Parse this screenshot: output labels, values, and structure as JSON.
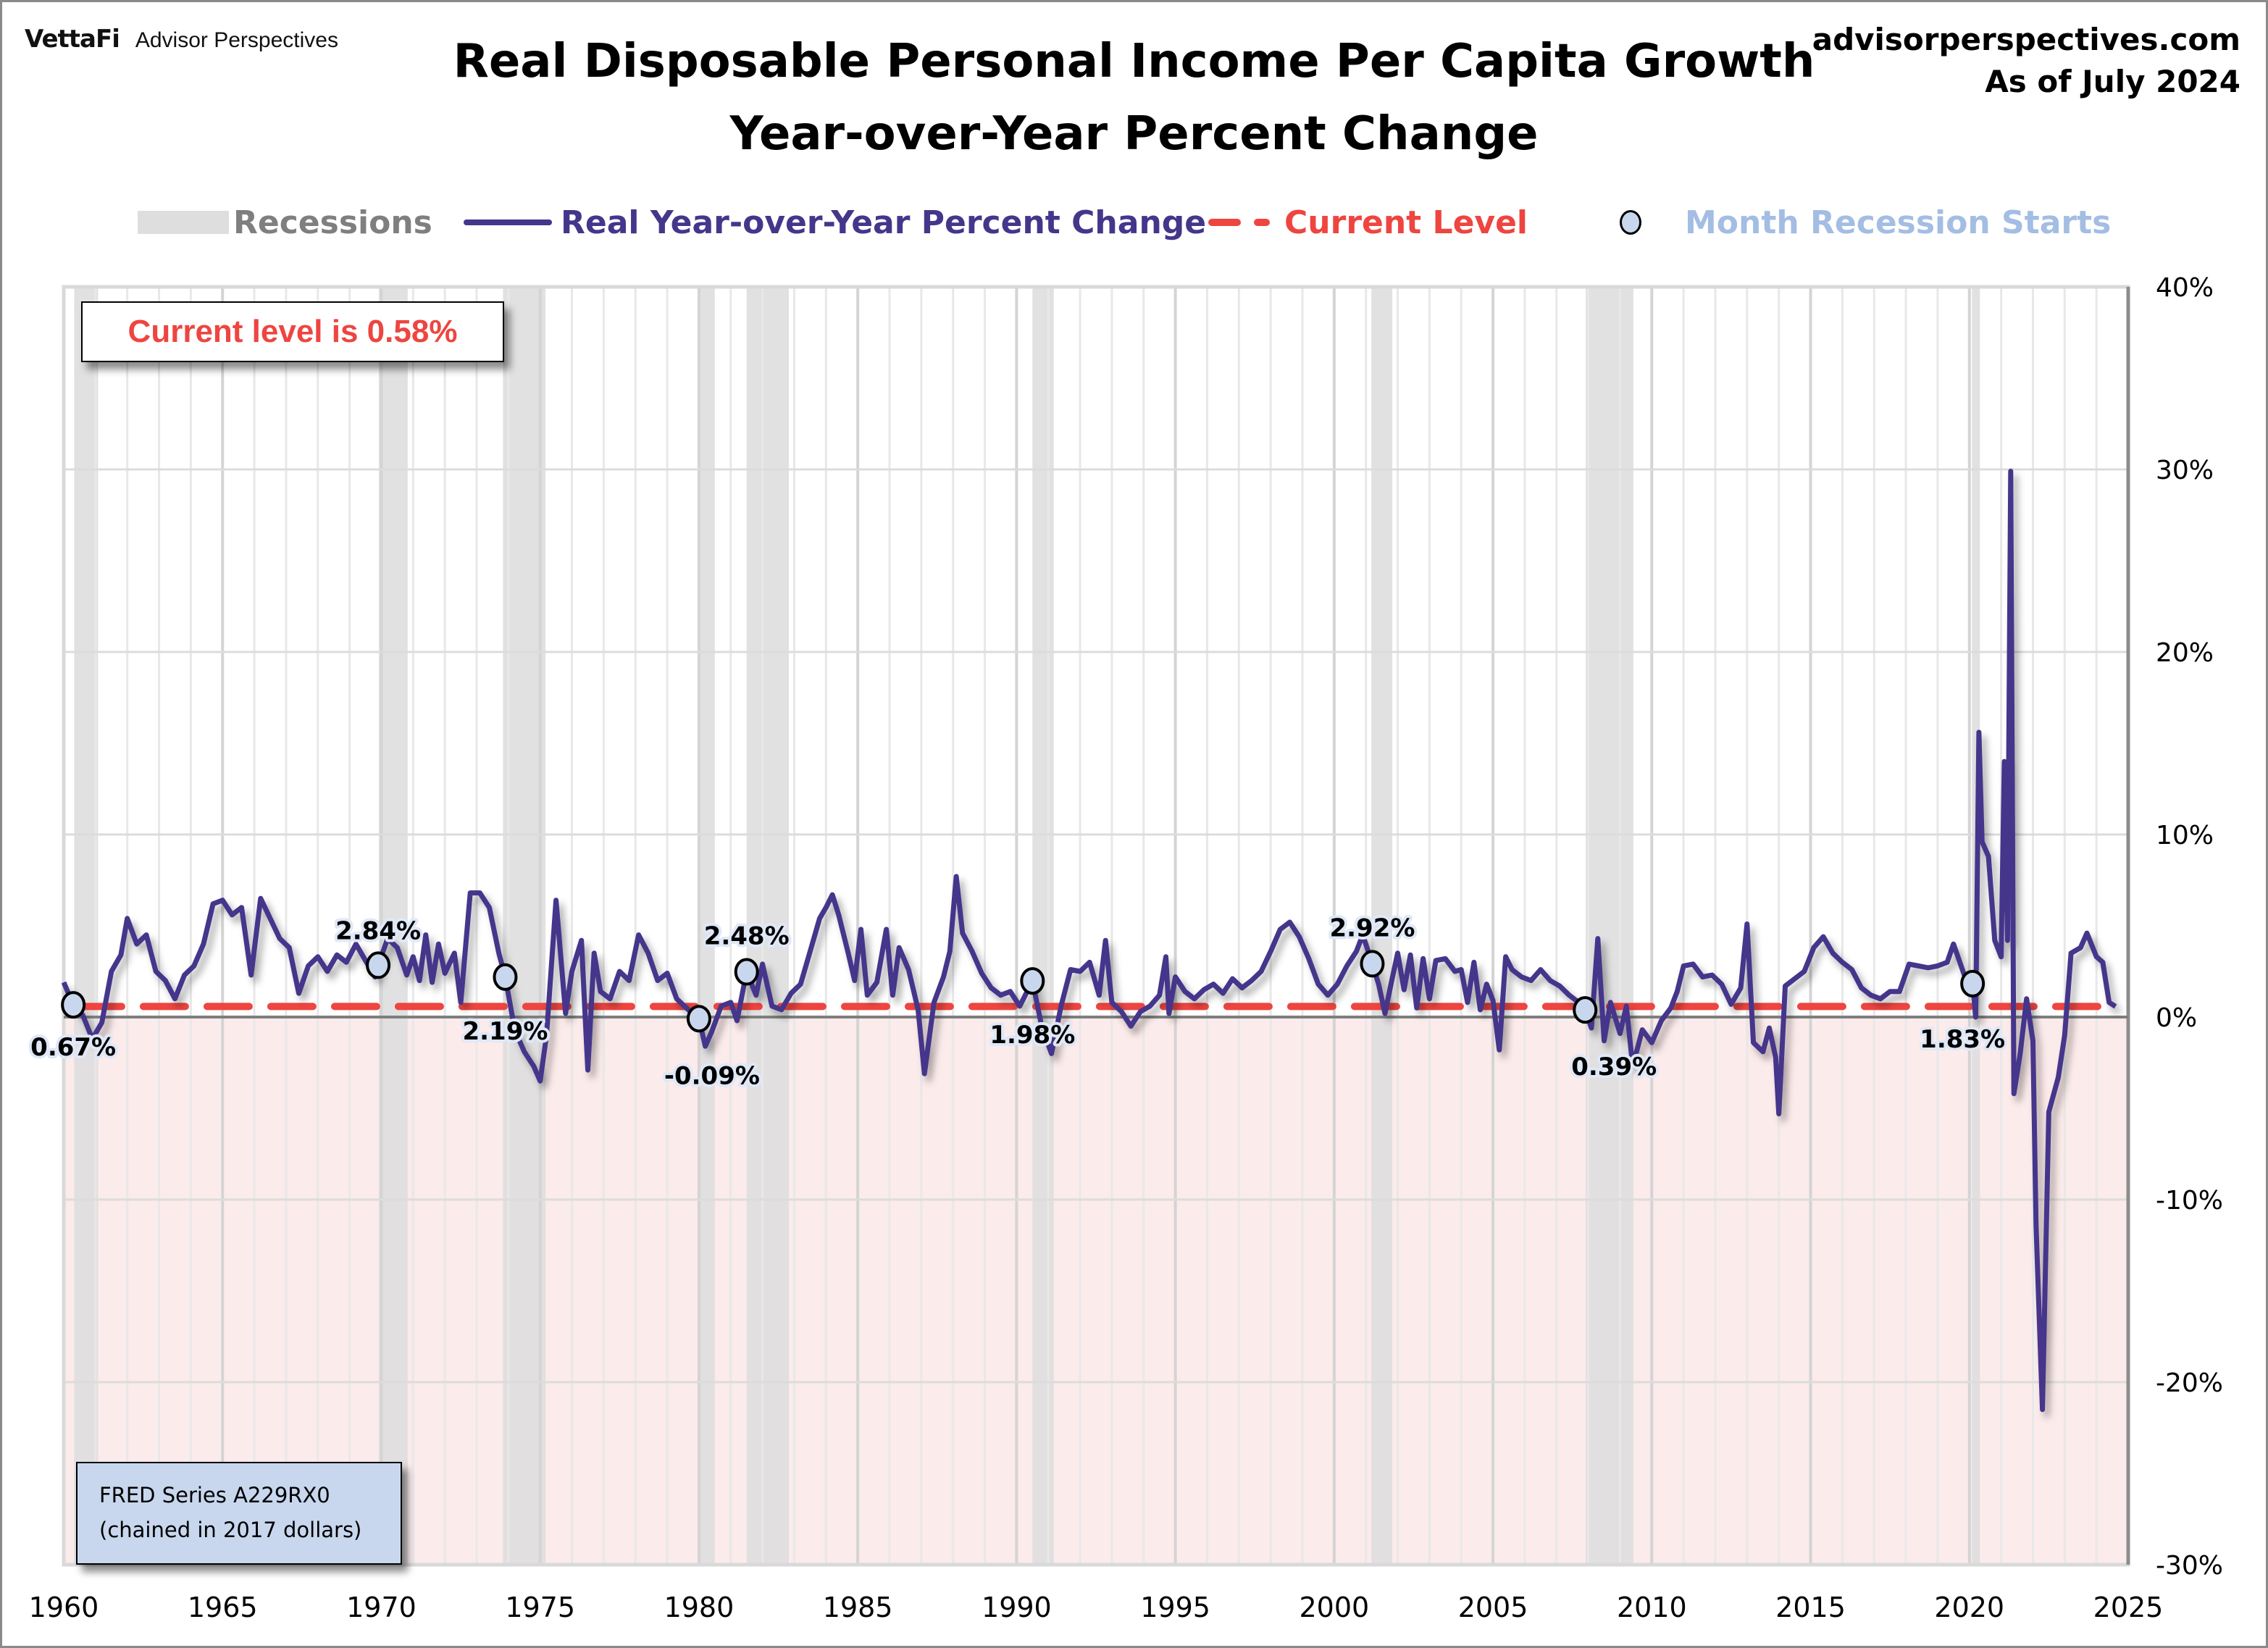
{
  "header": {
    "brand_logo": "VettaFi",
    "brand_name": "Advisor Perspectives",
    "site": "advisorperspectives.com",
    "as_of": "As of July 2024"
  },
  "callout": {
    "text": "Current level is 0.58%"
  },
  "source_note": {
    "line1": "FRED Series A229RX0",
    "line2": "(chained in 2017 dollars)"
  },
  "colors": {
    "series": "#44368b",
    "current_level": "#ee4540",
    "recession": "#dedede",
    "negative_zone": "#fcebeb",
    "marker_fill": "#c8d7ee",
    "legend_marker_text": "#a3bde3",
    "legend_recession_text": "#7f7f7f"
  },
  "chart_data": {
    "type": "line",
    "title": "Real Disposable Personal Income Per Capita Growth",
    "subtitle": "Year-over-Year Percent Change",
    "xlabel": "",
    "ylabel": "",
    "xlim": [
      1960,
      2025
    ],
    "ylim": [
      -30,
      40
    ],
    "grid": true,
    "legend_position": "top",
    "legend": [
      {
        "key": "recessions",
        "label": "Recessions"
      },
      {
        "key": "series",
        "label": "Real Year-over-Year Percent Change"
      },
      {
        "key": "current",
        "label": "Current Level"
      },
      {
        "key": "markers",
        "label": "Month Recession Starts"
      }
    ],
    "x_ticks": [
      1960,
      1965,
      1970,
      1975,
      1980,
      1985,
      1990,
      1995,
      2000,
      2005,
      2010,
      2015,
      2020,
      2025
    ],
    "x_tick_labels": [
      "1960",
      "1965",
      "1970",
      "1975",
      "1980",
      "1985",
      "1990",
      "1995",
      "2000",
      "2005",
      "2010",
      "2015",
      "2020",
      "2025"
    ],
    "y_ticks": [
      40,
      30,
      20,
      10,
      0,
      -10,
      -20,
      -30
    ],
    "y_tick_labels": [
      "40%",
      "30%",
      "20%",
      "10%",
      "0%",
      "-10%",
      "-20%",
      "-30%"
    ],
    "current_level": 0.58,
    "recessions": [
      [
        1960.33,
        1961.08
      ],
      [
        1969.92,
        1970.83
      ],
      [
        1973.83,
        1975.17
      ],
      [
        1980.0,
        1980.5
      ],
      [
        1981.5,
        1982.83
      ],
      [
        1990.5,
        1991.17
      ],
      [
        2001.17,
        2001.83
      ],
      [
        2007.92,
        2009.42
      ],
      [
        2020.08,
        2020.33
      ]
    ],
    "recession_start_markers": [
      {
        "x": 1960.3,
        "value": 0.67,
        "label": "0.67%"
      },
      {
        "x": 1969.9,
        "value": 2.84,
        "label": "2.84%"
      },
      {
        "x": 1973.9,
        "value": 2.19,
        "label": "2.19%"
      },
      {
        "x": 1980.0,
        "value": -0.09,
        "label": "-0.09%"
      },
      {
        "x": 1981.5,
        "value": 2.48,
        "label": "2.48%"
      },
      {
        "x": 1990.5,
        "value": 1.98,
        "label": "1.98%"
      },
      {
        "x": 2001.2,
        "value": 2.92,
        "label": "2.92%"
      },
      {
        "x": 2007.9,
        "value": 0.39,
        "label": "0.39%"
      },
      {
        "x": 2020.1,
        "value": 1.83,
        "label": "1.83%"
      }
    ],
    "series": [
      {
        "name": "Real Year-over-Year Percent Change",
        "points": [
          [
            1960.0,
            1.9
          ],
          [
            1960.3,
            0.67
          ],
          [
            1960.6,
            0.1
          ],
          [
            1960.9,
            -1.2
          ],
          [
            1961.2,
            -0.3
          ],
          [
            1961.5,
            2.5
          ],
          [
            1961.8,
            3.4
          ],
          [
            1962.0,
            5.4
          ],
          [
            1962.3,
            4.0
          ],
          [
            1962.6,
            4.5
          ],
          [
            1962.9,
            2.5
          ],
          [
            1963.2,
            2.0
          ],
          [
            1963.5,
            1.0
          ],
          [
            1963.8,
            2.3
          ],
          [
            1964.1,
            2.8
          ],
          [
            1964.4,
            4.0
          ],
          [
            1964.7,
            6.2
          ],
          [
            1965.0,
            6.4
          ],
          [
            1965.3,
            5.6
          ],
          [
            1965.6,
            6.0
          ],
          [
            1965.9,
            2.3
          ],
          [
            1966.2,
            6.5
          ],
          [
            1966.5,
            5.4
          ],
          [
            1966.8,
            4.3
          ],
          [
            1967.1,
            3.8
          ],
          [
            1967.4,
            1.3
          ],
          [
            1967.7,
            2.8
          ],
          [
            1968.0,
            3.3
          ],
          [
            1968.3,
            2.5
          ],
          [
            1968.6,
            3.4
          ],
          [
            1968.9,
            3.0
          ],
          [
            1969.2,
            4.0
          ],
          [
            1969.5,
            3.1
          ],
          [
            1969.8,
            2.2
          ],
          [
            1969.9,
            2.84
          ],
          [
            1970.2,
            4.3
          ],
          [
            1970.5,
            3.8
          ],
          [
            1970.8,
            2.3
          ],
          [
            1971.0,
            3.3
          ],
          [
            1971.2,
            2.0
          ],
          [
            1971.4,
            4.5
          ],
          [
            1971.6,
            1.9
          ],
          [
            1971.8,
            4.0
          ],
          [
            1972.0,
            2.4
          ],
          [
            1972.3,
            3.5
          ],
          [
            1972.5,
            0.8
          ],
          [
            1972.8,
            6.8
          ],
          [
            1973.1,
            6.8
          ],
          [
            1973.4,
            6.0
          ],
          [
            1973.7,
            3.5
          ],
          [
            1973.9,
            2.19
          ],
          [
            1974.2,
            -0.7
          ],
          [
            1974.5,
            -1.9
          ],
          [
            1974.8,
            -2.7
          ],
          [
            1975.0,
            -3.5
          ],
          [
            1975.2,
            -1.0
          ],
          [
            1975.5,
            6.4
          ],
          [
            1975.8,
            0.2
          ],
          [
            1976.0,
            2.5
          ],
          [
            1976.3,
            4.2
          ],
          [
            1976.5,
            -2.9
          ],
          [
            1976.7,
            3.5
          ],
          [
            1976.9,
            1.4
          ],
          [
            1977.2,
            1.0
          ],
          [
            1977.5,
            2.5
          ],
          [
            1977.8,
            2.0
          ],
          [
            1978.1,
            4.5
          ],
          [
            1978.4,
            3.5
          ],
          [
            1978.7,
            2.0
          ],
          [
            1979.0,
            2.4
          ],
          [
            1979.3,
            1.0
          ],
          [
            1979.6,
            0.5
          ],
          [
            1979.8,
            0.2
          ],
          [
            1980.0,
            -0.09
          ],
          [
            1980.2,
            -1.6
          ],
          [
            1980.4,
            -0.8
          ],
          [
            1980.7,
            0.6
          ],
          [
            1981.0,
            0.8
          ],
          [
            1981.2,
            -0.2
          ],
          [
            1981.5,
            2.48
          ],
          [
            1981.8,
            1.2
          ],
          [
            1982.0,
            2.9
          ],
          [
            1982.3,
            0.6
          ],
          [
            1982.6,
            0.4
          ],
          [
            1982.9,
            1.3
          ],
          [
            1983.2,
            1.8
          ],
          [
            1983.5,
            3.6
          ],
          [
            1983.8,
            5.4
          ],
          [
            1984.0,
            6.0
          ],
          [
            1984.2,
            6.7
          ],
          [
            1984.4,
            5.6
          ],
          [
            1984.7,
            3.5
          ],
          [
            1984.9,
            2.0
          ],
          [
            1985.1,
            4.8
          ],
          [
            1985.3,
            1.2
          ],
          [
            1985.6,
            1.9
          ],
          [
            1985.9,
            4.8
          ],
          [
            1986.1,
            1.2
          ],
          [
            1986.3,
            3.8
          ],
          [
            1986.6,
            2.6
          ],
          [
            1986.9,
            0.4
          ],
          [
            1987.1,
            -3.1
          ],
          [
            1987.4,
            0.8
          ],
          [
            1987.7,
            2.2
          ],
          [
            1987.9,
            3.6
          ],
          [
            1988.1,
            7.7
          ],
          [
            1988.3,
            4.6
          ],
          [
            1988.6,
            3.6
          ],
          [
            1988.9,
            2.4
          ],
          [
            1989.2,
            1.6
          ],
          [
            1989.5,
            1.2
          ],
          [
            1989.8,
            1.4
          ],
          [
            1990.1,
            0.6
          ],
          [
            1990.5,
            1.98
          ],
          [
            1990.8,
            -0.6
          ],
          [
            1991.1,
            -2.0
          ],
          [
            1991.4,
            0.6
          ],
          [
            1991.7,
            2.6
          ],
          [
            1992.0,
            2.5
          ],
          [
            1992.3,
            3.0
          ],
          [
            1992.6,
            1.2
          ],
          [
            1992.8,
            4.2
          ],
          [
            1993.0,
            0.8
          ],
          [
            1993.3,
            0.3
          ],
          [
            1993.6,
            -0.5
          ],
          [
            1993.9,
            0.3
          ],
          [
            1994.2,
            0.6
          ],
          [
            1994.5,
            1.2
          ],
          [
            1994.7,
            3.3
          ],
          [
            1994.8,
            0.2
          ],
          [
            1995.0,
            2.2
          ],
          [
            1995.3,
            1.4
          ],
          [
            1995.6,
            1.0
          ],
          [
            1995.9,
            1.5
          ],
          [
            1996.2,
            1.8
          ],
          [
            1996.5,
            1.3
          ],
          [
            1996.8,
            2.1
          ],
          [
            1997.1,
            1.6
          ],
          [
            1997.4,
            2.0
          ],
          [
            1997.7,
            2.5
          ],
          [
            1998.0,
            3.6
          ],
          [
            1998.3,
            4.8
          ],
          [
            1998.6,
            5.2
          ],
          [
            1998.9,
            4.4
          ],
          [
            1999.2,
            3.2
          ],
          [
            1999.5,
            1.8
          ],
          [
            1999.8,
            1.2
          ],
          [
            2000.1,
            1.8
          ],
          [
            2000.4,
            2.8
          ],
          [
            2000.7,
            3.6
          ],
          [
            2000.9,
            4.5
          ],
          [
            2001.2,
            2.92
          ],
          [
            2001.4,
            1.8
          ],
          [
            2001.6,
            0.2
          ],
          [
            2001.8,
            1.9
          ],
          [
            2002.0,
            3.5
          ],
          [
            2002.2,
            1.5
          ],
          [
            2002.4,
            3.4
          ],
          [
            2002.6,
            0.5
          ],
          [
            2002.8,
            3.2
          ],
          [
            2003.0,
            1.0
          ],
          [
            2003.2,
            3.1
          ],
          [
            2003.5,
            3.2
          ],
          [
            2003.8,
            2.5
          ],
          [
            2004.0,
            2.6
          ],
          [
            2004.2,
            0.8
          ],
          [
            2004.4,
            3.0
          ],
          [
            2004.6,
            0.4
          ],
          [
            2004.8,
            1.8
          ],
          [
            2005.0,
            0.9
          ],
          [
            2005.2,
            -1.8
          ],
          [
            2005.4,
            3.3
          ],
          [
            2005.6,
            2.6
          ],
          [
            2005.9,
            2.2
          ],
          [
            2006.2,
            2.0
          ],
          [
            2006.5,
            2.6
          ],
          [
            2006.8,
            2.0
          ],
          [
            2007.1,
            1.7
          ],
          [
            2007.4,
            1.2
          ],
          [
            2007.7,
            0.8
          ],
          [
            2007.9,
            0.39
          ],
          [
            2008.1,
            -0.6
          ],
          [
            2008.3,
            4.3
          ],
          [
            2008.5,
            -1.3
          ],
          [
            2008.7,
            0.8
          ],
          [
            2009.0,
            -0.9
          ],
          [
            2009.2,
            0.6
          ],
          [
            2009.4,
            -2.7
          ],
          [
            2009.7,
            -0.7
          ],
          [
            2010.0,
            -1.4
          ],
          [
            2010.3,
            -0.2
          ],
          [
            2010.6,
            0.5
          ],
          [
            2010.8,
            1.4
          ],
          [
            2011.0,
            2.8
          ],
          [
            2011.3,
            2.9
          ],
          [
            2011.6,
            2.2
          ],
          [
            2011.9,
            2.3
          ],
          [
            2012.2,
            1.8
          ],
          [
            2012.5,
            0.7
          ],
          [
            2012.8,
            1.6
          ],
          [
            2013.0,
            5.1
          ],
          [
            2013.2,
            -1.4
          ],
          [
            2013.5,
            -1.9
          ],
          [
            2013.7,
            -0.6
          ],
          [
            2013.9,
            -2.2
          ],
          [
            2014.0,
            -5.3
          ],
          [
            2014.2,
            1.7
          ],
          [
            2014.5,
            2.1
          ],
          [
            2014.8,
            2.5
          ],
          [
            2015.1,
            3.8
          ],
          [
            2015.4,
            4.4
          ],
          [
            2015.7,
            3.5
          ],
          [
            2016.0,
            3.0
          ],
          [
            2016.3,
            2.6
          ],
          [
            2016.6,
            1.6
          ],
          [
            2016.9,
            1.2
          ],
          [
            2017.2,
            1.0
          ],
          [
            2017.5,
            1.4
          ],
          [
            2017.8,
            1.4
          ],
          [
            2018.1,
            2.9
          ],
          [
            2018.4,
            2.8
          ],
          [
            2018.7,
            2.7
          ],
          [
            2019.0,
            2.8
          ],
          [
            2019.3,
            3.0
          ],
          [
            2019.5,
            4.0
          ],
          [
            2019.7,
            3.0
          ],
          [
            2019.9,
            2.0
          ],
          [
            2020.1,
            1.83
          ],
          [
            2020.2,
            0.0
          ],
          [
            2020.3,
            15.6
          ],
          [
            2020.4,
            9.6
          ],
          [
            2020.6,
            8.8
          ],
          [
            2020.8,
            4.2
          ],
          [
            2021.0,
            3.3
          ],
          [
            2021.1,
            14.0
          ],
          [
            2021.2,
            4.2
          ],
          [
            2021.3,
            29.9
          ],
          [
            2021.4,
            -4.2
          ],
          [
            2021.6,
            -2.0
          ],
          [
            2021.8,
            1.0
          ],
          [
            2022.0,
            -1.3
          ],
          [
            2022.1,
            -11.4
          ],
          [
            2022.3,
            -21.5
          ],
          [
            2022.5,
            -5.2
          ],
          [
            2022.8,
            -3.3
          ],
          [
            2023.0,
            -1.0
          ],
          [
            2023.2,
            3.5
          ],
          [
            2023.5,
            3.8
          ],
          [
            2023.7,
            4.6
          ],
          [
            2024.0,
            3.3
          ],
          [
            2024.2,
            3.0
          ],
          [
            2024.4,
            0.8
          ],
          [
            2024.6,
            0.58
          ]
        ]
      }
    ]
  }
}
